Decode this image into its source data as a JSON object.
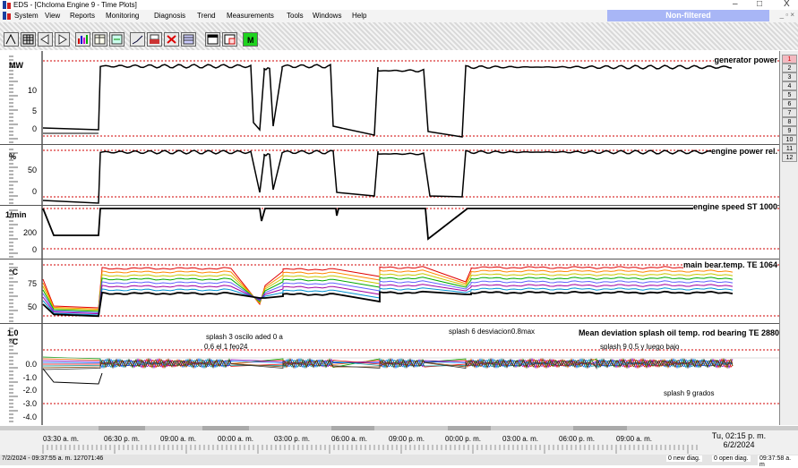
{
  "window": {
    "title": "EDS - [Chcloma Engine 9 - Time Plots]",
    "controls": [
      "–",
      "□",
      "X"
    ]
  },
  "menu": {
    "items": [
      "System",
      "View",
      "Reports",
      "Monitoring",
      "Diagnosis",
      "Trend",
      "Measurements",
      "Tools",
      "Windows",
      "Help"
    ],
    "filter_status": "Non-filtered"
  },
  "panels": [
    {
      "title": "generator power",
      "unit": "MW",
      "ticks": [
        "10",
        "5",
        "0"
      ]
    },
    {
      "title": "engine power rel.",
      "unit": "%",
      "ticks": [
        "50",
        "0"
      ]
    },
    {
      "title": "engine speed ST 1000",
      "unit": "1/min",
      "ticks": [
        "200",
        "0"
      ]
    },
    {
      "title": "main bear.temp. TE 1064",
      "unit": "°C",
      "ticks": [
        "75",
        "50"
      ]
    },
    {
      "title": "Mean deviation splash oil temp. rod bearing TE 2880",
      "unit": "°C",
      "unit_top": "1.0",
      "ticks": [
        "0.0",
        "-1.0",
        "-2.0",
        "-3.0",
        "-4.0"
      ]
    }
  ],
  "annotations": {
    "a1_line1": "splash 3 oscilo aded 0 a",
    "a1_line2": "0.6 el 1 feo24",
    "a2": "splash 6 desviacion0.8max",
    "a3": "splash 9 0.5 y luego bajo",
    "a4": "splash 9 grados"
  },
  "side_numbers": [
    "1",
    "2",
    "3",
    "4",
    "5",
    "6",
    "7",
    "8",
    "9",
    "10",
    "11",
    "12"
  ],
  "time_axis": {
    "labels": [
      "03:30 a. m.",
      "06:30 p. m.",
      "09:00 a. m.",
      "00:00 a. m.",
      "03:00 p. m.",
      "06:00 a. m.",
      "09:00 p. m.",
      "00:00 p. m.",
      "03:00 a. m.",
      "06:00 p. m.",
      "09:00 a. m."
    ],
    "current_time": "Tu, 02:15 p. m.",
    "current_date": "6/2/2024"
  },
  "status": {
    "left": "7/2/2024 - 09:37:55 a. m. 127071:46",
    "new_diag": "0 new diag.",
    "open_diag": "0 open diag.",
    "right": "09:37:58 a. m"
  },
  "colors": {
    "filter_bar": "#a8b6f6",
    "limit_line": "#d00000",
    "active_index": "#f3b9c0"
  }
}
